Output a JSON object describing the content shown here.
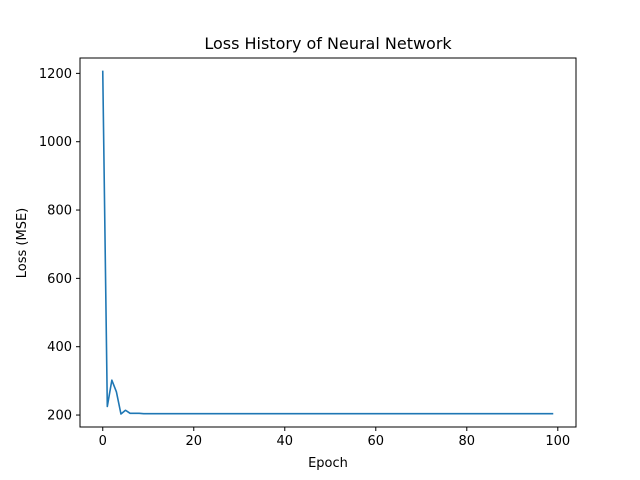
{
  "chart_data": {
    "type": "line",
    "title": "Loss History of Neural Network",
    "xlabel": "Epoch",
    "ylabel": "Loss (MSE)",
    "xlim": [
      -5,
      104
    ],
    "ylim": [
      165,
      1245
    ],
    "xticks": [
      0,
      20,
      40,
      60,
      80,
      100
    ],
    "yticks": [
      200,
      400,
      600,
      800,
      1000,
      1200
    ],
    "grid": false,
    "line_color": "#1f77b4",
    "series": [
      {
        "x": [
          0,
          1,
          2,
          3,
          4,
          5,
          6,
          7,
          8,
          9,
          10,
          15,
          20,
          30,
          40,
          50,
          60,
          70,
          80,
          90,
          99
        ],
        "values": [
          1208,
          225,
          302,
          268,
          203,
          214,
          205,
          205,
          205,
          204,
          204,
          204,
          204,
          204,
          204,
          204,
          204,
          204,
          204,
          204,
          204
        ]
      }
    ]
  }
}
